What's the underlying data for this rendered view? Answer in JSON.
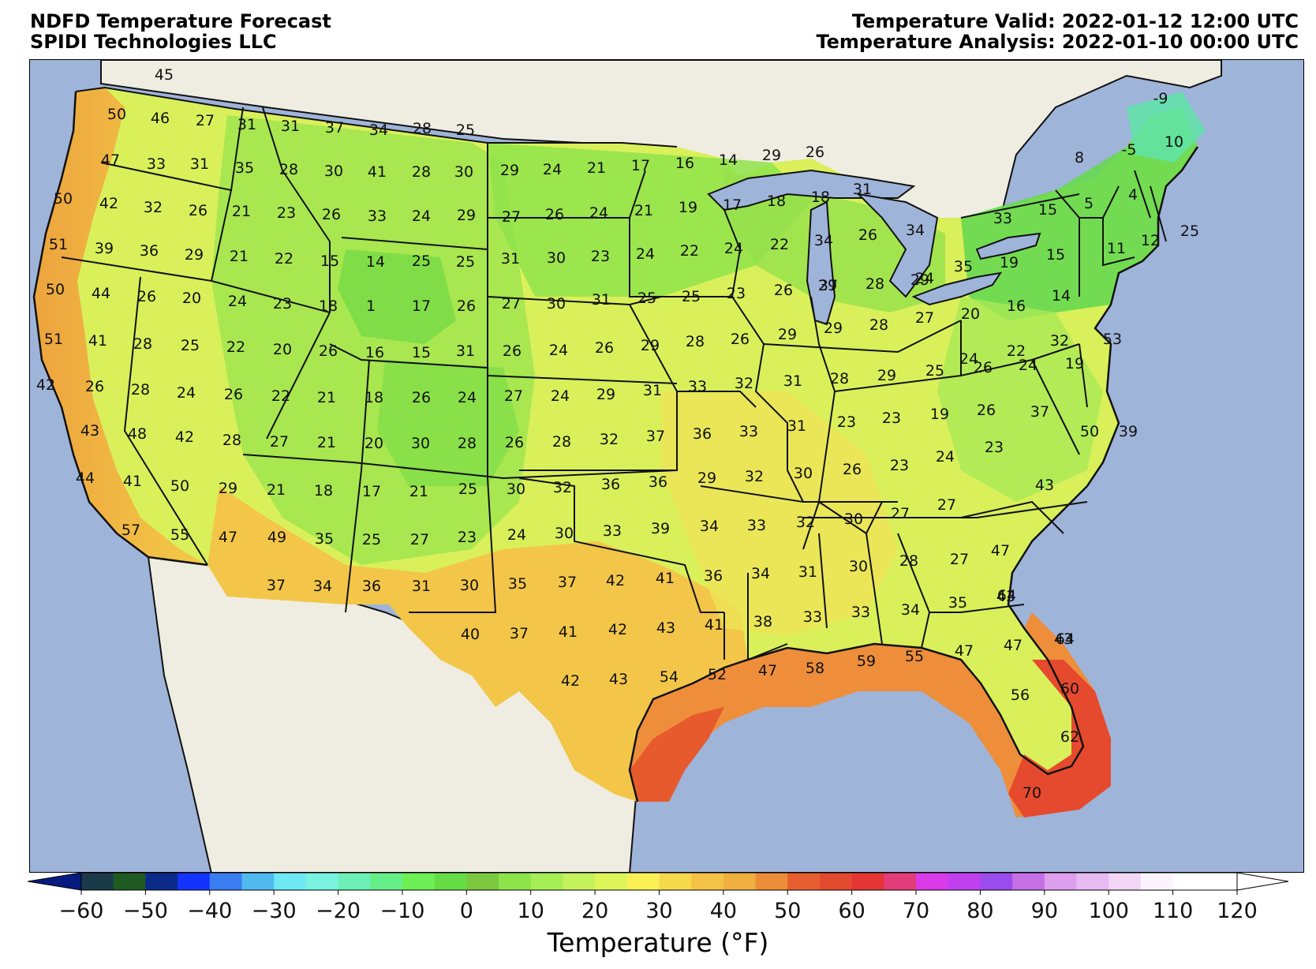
{
  "header": {
    "title_line1": "NDFD Temperature Forecast",
    "title_line2": "SPIDI Technologies LLC",
    "valid_line": "Temperature Valid: 2022-01-12 12:00 UTC",
    "analysis_line": "Temperature Analysis: 2022-01-10 00:00 UTC"
  },
  "colors": {
    "ocean": "#9fb4d9",
    "land_outside": "#efede1",
    "border": "#111111"
  },
  "colorbar": {
    "title": "Temperature (°F)",
    "min": -60,
    "max": 120,
    "step": 5,
    "ticks": [
      "−60",
      "−50",
      "−40",
      "−30",
      "−20",
      "−10",
      "0",
      "10",
      "20",
      "30",
      "40",
      "50",
      "60",
      "70",
      "80",
      "90",
      "100",
      "110",
      "120"
    ],
    "colors": [
      "#071a80",
      "#1a3a4a",
      "#1f5a22",
      "#0b2a8a",
      "#1533ff",
      "#3a7df0",
      "#4fb9f0",
      "#6ee8f5",
      "#7af2e0",
      "#6cf0b8",
      "#66ee88",
      "#6cf055",
      "#66dd44",
      "#7cc83e",
      "#8ee24a",
      "#a6ee55",
      "#c4f25a",
      "#def55a",
      "#f8f055",
      "#f6d94a",
      "#f4c244",
      "#f0b040",
      "#ec8c38",
      "#e65e30",
      "#e24a2e",
      "#e63535",
      "#e23c7a",
      "#d93be8",
      "#c040f0",
      "#9b4cec",
      "#c46fe6",
      "#dea0ee",
      "#e8baf2",
      "#f2d8f6",
      "#fbf4fd",
      "#ffffff"
    ]
  },
  "stations": [
    {
      "t": "45"
    },
    {
      "t": "50"
    },
    {
      "t": "46"
    },
    {
      "t": "27"
    },
    {
      "t": "31"
    },
    {
      "t": "31"
    },
    {
      "t": "37"
    },
    {
      "t": "34"
    },
    {
      "t": "28"
    },
    {
      "t": "25"
    },
    {
      "t": "47"
    },
    {
      "t": "33"
    },
    {
      "t": "31"
    },
    {
      "t": "35"
    },
    {
      "t": "28"
    },
    {
      "t": "30"
    },
    {
      "t": "41"
    },
    {
      "t": "28"
    },
    {
      "t": "30"
    },
    {
      "t": "29"
    },
    {
      "t": "24"
    },
    {
      "t": "21"
    },
    {
      "t": "17"
    },
    {
      "t": "16"
    },
    {
      "t": "14"
    },
    {
      "t": "29"
    },
    {
      "t": "26"
    },
    {
      "t": "-9"
    },
    {
      "t": "8"
    },
    {
      "t": "-5"
    },
    {
      "t": "10"
    },
    {
      "t": "50"
    },
    {
      "t": "42"
    },
    {
      "t": "32"
    },
    {
      "t": "26"
    },
    {
      "t": "21"
    },
    {
      "t": "23"
    },
    {
      "t": "26"
    },
    {
      "t": "33"
    },
    {
      "t": "24"
    },
    {
      "t": "29"
    },
    {
      "t": "27"
    },
    {
      "t": "26"
    },
    {
      "t": "24"
    },
    {
      "t": "21"
    },
    {
      "t": "19"
    },
    {
      "t": "17"
    },
    {
      "t": "18"
    },
    {
      "t": "18"
    },
    {
      "t": "31"
    },
    {
      "t": "33"
    },
    {
      "t": "15"
    },
    {
      "t": "5"
    },
    {
      "t": "4"
    },
    {
      "t": "25"
    },
    {
      "t": "51"
    },
    {
      "t": "39"
    },
    {
      "t": "36"
    },
    {
      "t": "29"
    },
    {
      "t": "21"
    },
    {
      "t": "22"
    },
    {
      "t": "15"
    },
    {
      "t": "14"
    },
    {
      "t": "25"
    },
    {
      "t": "25"
    },
    {
      "t": "31"
    },
    {
      "t": "30"
    },
    {
      "t": "23"
    },
    {
      "t": "24"
    },
    {
      "t": "22"
    },
    {
      "t": "24"
    },
    {
      "t": "22"
    },
    {
      "t": "34"
    },
    {
      "t": "26"
    },
    {
      "t": "34"
    },
    {
      "t": "12"
    },
    {
      "t": "11"
    },
    {
      "t": "15"
    },
    {
      "t": "19"
    },
    {
      "t": "35"
    },
    {
      "t": "29"
    },
    {
      "t": "37"
    },
    {
      "t": "50"
    },
    {
      "t": "44"
    },
    {
      "t": "26"
    },
    {
      "t": "20"
    },
    {
      "t": "24"
    },
    {
      "t": "23"
    },
    {
      "t": "18"
    },
    {
      "t": "1"
    },
    {
      "t": "17"
    },
    {
      "t": "26"
    },
    {
      "t": "27"
    },
    {
      "t": "30"
    },
    {
      "t": "31"
    },
    {
      "t": "25"
    },
    {
      "t": "25"
    },
    {
      "t": "23"
    },
    {
      "t": "26"
    },
    {
      "t": "29"
    },
    {
      "t": "28"
    },
    {
      "t": "24"
    },
    {
      "t": "20"
    },
    {
      "t": "16"
    },
    {
      "t": "14"
    },
    {
      "t": "51"
    },
    {
      "t": "41"
    },
    {
      "t": "28"
    },
    {
      "t": "25"
    },
    {
      "t": "22"
    },
    {
      "t": "20"
    },
    {
      "t": "26"
    },
    {
      "t": "16"
    },
    {
      "t": "15"
    },
    {
      "t": "31"
    },
    {
      "t": "26"
    },
    {
      "t": "24"
    },
    {
      "t": "26"
    },
    {
      "t": "29"
    },
    {
      "t": "28"
    },
    {
      "t": "26"
    },
    {
      "t": "29"
    },
    {
      "t": "29"
    },
    {
      "t": "28"
    },
    {
      "t": "27"
    },
    {
      "t": "24"
    },
    {
      "t": "22"
    },
    {
      "t": "32"
    },
    {
      "t": "53"
    },
    {
      "t": "42"
    },
    {
      "t": "26"
    },
    {
      "t": "28"
    },
    {
      "t": "24"
    },
    {
      "t": "26"
    },
    {
      "t": "22"
    },
    {
      "t": "21"
    },
    {
      "t": "18"
    },
    {
      "t": "26"
    },
    {
      "t": "24"
    },
    {
      "t": "27"
    },
    {
      "t": "24"
    },
    {
      "t": "29"
    },
    {
      "t": "31"
    },
    {
      "t": "33"
    },
    {
      "t": "32"
    },
    {
      "t": "31"
    },
    {
      "t": "28"
    },
    {
      "t": "29"
    },
    {
      "t": "25"
    },
    {
      "t": "26"
    },
    {
      "t": "24"
    },
    {
      "t": "19"
    },
    {
      "t": "39"
    },
    {
      "t": "43"
    },
    {
      "t": "48"
    },
    {
      "t": "42"
    },
    {
      "t": "28"
    },
    {
      "t": "27"
    },
    {
      "t": "21"
    },
    {
      "t": "20"
    },
    {
      "t": "30"
    },
    {
      "t": "28"
    },
    {
      "t": "26"
    },
    {
      "t": "28"
    },
    {
      "t": "32"
    },
    {
      "t": "37"
    },
    {
      "t": "36"
    },
    {
      "t": "33"
    },
    {
      "t": "31"
    },
    {
      "t": "23"
    },
    {
      "t": "23"
    },
    {
      "t": "19"
    },
    {
      "t": "26"
    },
    {
      "t": "37"
    },
    {
      "t": "50"
    },
    {
      "t": "44"
    },
    {
      "t": "41"
    },
    {
      "t": "50"
    },
    {
      "t": "29"
    },
    {
      "t": "21"
    },
    {
      "t": "18"
    },
    {
      "t": "17"
    },
    {
      "t": "21"
    },
    {
      "t": "25"
    },
    {
      "t": "30"
    },
    {
      "t": "32"
    },
    {
      "t": "36"
    },
    {
      "t": "36"
    },
    {
      "t": "29"
    },
    {
      "t": "32"
    },
    {
      "t": "30"
    },
    {
      "t": "26"
    },
    {
      "t": "23"
    },
    {
      "t": "24"
    },
    {
      "t": "23"
    },
    {
      "t": "43"
    },
    {
      "t": "57"
    },
    {
      "t": "55"
    },
    {
      "t": "47"
    },
    {
      "t": "49"
    },
    {
      "t": "35"
    },
    {
      "t": "25"
    },
    {
      "t": "27"
    },
    {
      "t": "23"
    },
    {
      "t": "24"
    },
    {
      "t": "30"
    },
    {
      "t": "33"
    },
    {
      "t": "39"
    },
    {
      "t": "34"
    },
    {
      "t": "33"
    },
    {
      "t": "32"
    },
    {
      "t": "30"
    },
    {
      "t": "27"
    },
    {
      "t": "27"
    },
    {
      "t": "47"
    },
    {
      "t": "37"
    },
    {
      "t": "34"
    },
    {
      "t": "36"
    },
    {
      "t": "31"
    },
    {
      "t": "30"
    },
    {
      "t": "35"
    },
    {
      "t": "37"
    },
    {
      "t": "42"
    },
    {
      "t": "41"
    },
    {
      "t": "36"
    },
    {
      "t": "34"
    },
    {
      "t": "31"
    },
    {
      "t": "30"
    },
    {
      "t": "28"
    },
    {
      "t": "27"
    },
    {
      "t": "43"
    },
    {
      "t": "40"
    },
    {
      "t": "37"
    },
    {
      "t": "41"
    },
    {
      "t": "42"
    },
    {
      "t": "43"
    },
    {
      "t": "41"
    },
    {
      "t": "38"
    },
    {
      "t": "33"
    },
    {
      "t": "33"
    },
    {
      "t": "34"
    },
    {
      "t": "35"
    },
    {
      "t": "64"
    },
    {
      "t": "43"
    },
    {
      "t": "42"
    },
    {
      "t": "43"
    },
    {
      "t": "54"
    },
    {
      "t": "52"
    },
    {
      "t": "47"
    },
    {
      "t": "58"
    },
    {
      "t": "59"
    },
    {
      "t": "55"
    },
    {
      "t": "47"
    },
    {
      "t": "47"
    },
    {
      "t": "64"
    },
    {
      "t": "56"
    },
    {
      "t": "60"
    },
    {
      "t": "62"
    },
    {
      "t": "70"
    }
  ]
}
